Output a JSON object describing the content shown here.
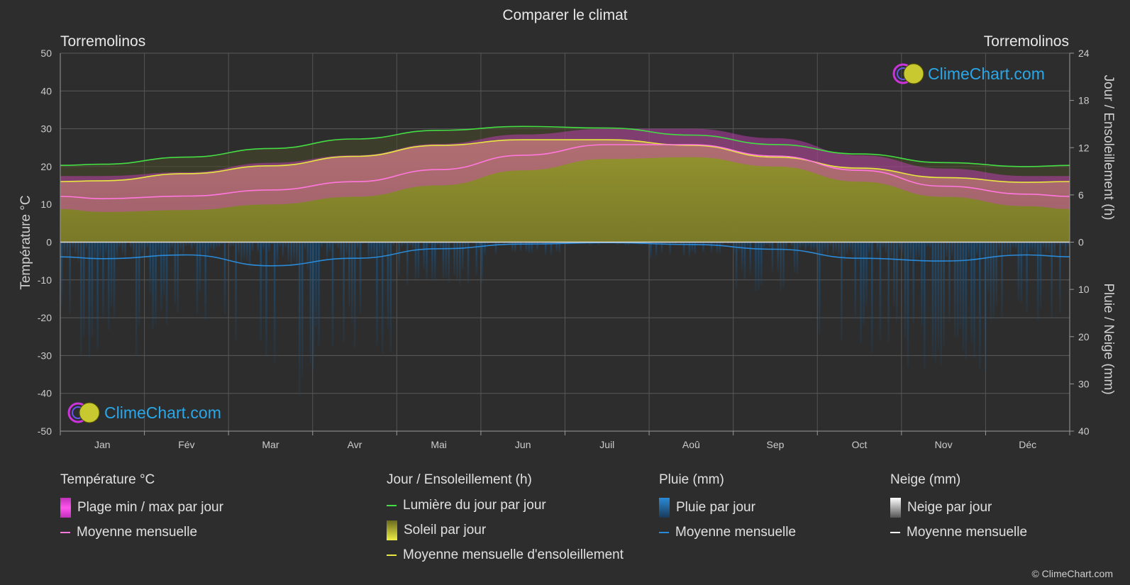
{
  "title": "Comparer le climat",
  "location_left": "Torremolinos",
  "location_right": "Torremolinos",
  "axis_left_label": "Température °C",
  "axis_right_top_label": "Jour / Ensoleillement (h)",
  "axis_right_bottom_label": "Pluie / Neige (mm)",
  "brand": "ClimeChart.com",
  "copyright": "© ClimeChart.com",
  "colors": {
    "background": "#2d2d2d",
    "daylight": "#44dd44",
    "sunshine_mean": "#e8e840",
    "sunshine_fill": "#8a8a2a",
    "temp_mean": "#ff77dd",
    "temp_range": "#d43fc4",
    "rain": "#2a8ad8",
    "snow_mean": "#ffffff"
  },
  "legend": {
    "temperature": {
      "heading": "Température °C",
      "items": [
        "Plage min / max par jour",
        "Moyenne mensuelle"
      ]
    },
    "sun": {
      "heading": "Jour / Ensoleillement (h)",
      "items": [
        "Lumière du jour par jour",
        "Soleil par jour",
        "Moyenne mensuelle d'ensoleillement"
      ]
    },
    "rain": {
      "heading": "Pluie (mm)",
      "items": [
        "Pluie par jour",
        "Moyenne mensuelle"
      ]
    },
    "snow": {
      "heading": "Neige (mm)",
      "items": [
        "Neige par jour",
        "Moyenne mensuelle"
      ]
    }
  },
  "chart_data": {
    "type": "line",
    "categories": [
      "Jan",
      "Fév",
      "Mar",
      "Avr",
      "Mai",
      "Jun",
      "Juil",
      "Aoû",
      "Sep",
      "Oct",
      "Nov",
      "Déc"
    ],
    "y_left": {
      "label": "Température °C",
      "range": [
        -50,
        50
      ],
      "ticks": [
        50,
        40,
        30,
        20,
        10,
        0,
        -10,
        -20,
        -30,
        -40,
        -50
      ]
    },
    "y_right_top": {
      "label": "Jour / Ensoleillement (h)",
      "range": [
        0,
        24
      ],
      "ticks": [
        24,
        18,
        12,
        6,
        0
      ]
    },
    "y_right_bottom": {
      "label": "Pluie / Neige (mm)",
      "range": [
        0,
        40
      ],
      "ticks": [
        0,
        10,
        20,
        30,
        40
      ]
    },
    "grid": true,
    "series": [
      {
        "name": "Lumière du jour par jour",
        "axis": "hours",
        "values": [
          9.9,
          10.8,
          11.9,
          13.1,
          14.2,
          14.7,
          14.5,
          13.6,
          12.4,
          11.2,
          10.1,
          9.6
        ]
      },
      {
        "name": "Moyenne mensuelle d'ensoleillement",
        "axis": "hours",
        "values": [
          7.8,
          8.7,
          9.7,
          10.9,
          12.3,
          13.0,
          13.0,
          12.3,
          10.8,
          9.4,
          8.2,
          7.6
        ]
      },
      {
        "name": "Soleil par jour",
        "axis": "hours",
        "values": [
          7.8,
          8.7,
          9.7,
          10.9,
          12.3,
          13.0,
          13.0,
          12.3,
          10.8,
          9.4,
          8.2,
          7.6
        ]
      },
      {
        "name": "Moyenne mensuelle",
        "metric": "temperature",
        "axis": "temp",
        "values": [
          11.5,
          12.2,
          13.8,
          16.0,
          19.2,
          23.0,
          25.8,
          25.8,
          22.8,
          19.0,
          14.8,
          12.7
        ]
      },
      {
        "name": "Plage min / max par jour",
        "axis": "temp",
        "min": [
          8,
          8.5,
          10,
          12,
          15,
          19,
          22,
          22.5,
          20,
          16,
          12,
          9.5
        ],
        "max": [
          17.5,
          18.5,
          21,
          23,
          26,
          28.5,
          30,
          30,
          27.5,
          23,
          19.5,
          17.5
        ]
      },
      {
        "name": "Moyenne mensuelle",
        "metric": "rain",
        "axis": "mm",
        "values": [
          3.5,
          2.7,
          5.0,
          3.4,
          1.4,
          0.4,
          0.1,
          0.5,
          1.5,
          3.4,
          4.0,
          2.7
        ]
      },
      {
        "name": "Moyenne mensuelle",
        "metric": "snow",
        "axis": "mm",
        "values": [
          0,
          0,
          0,
          0,
          0,
          0,
          0,
          0,
          0,
          0,
          0,
          0
        ]
      }
    ]
  }
}
